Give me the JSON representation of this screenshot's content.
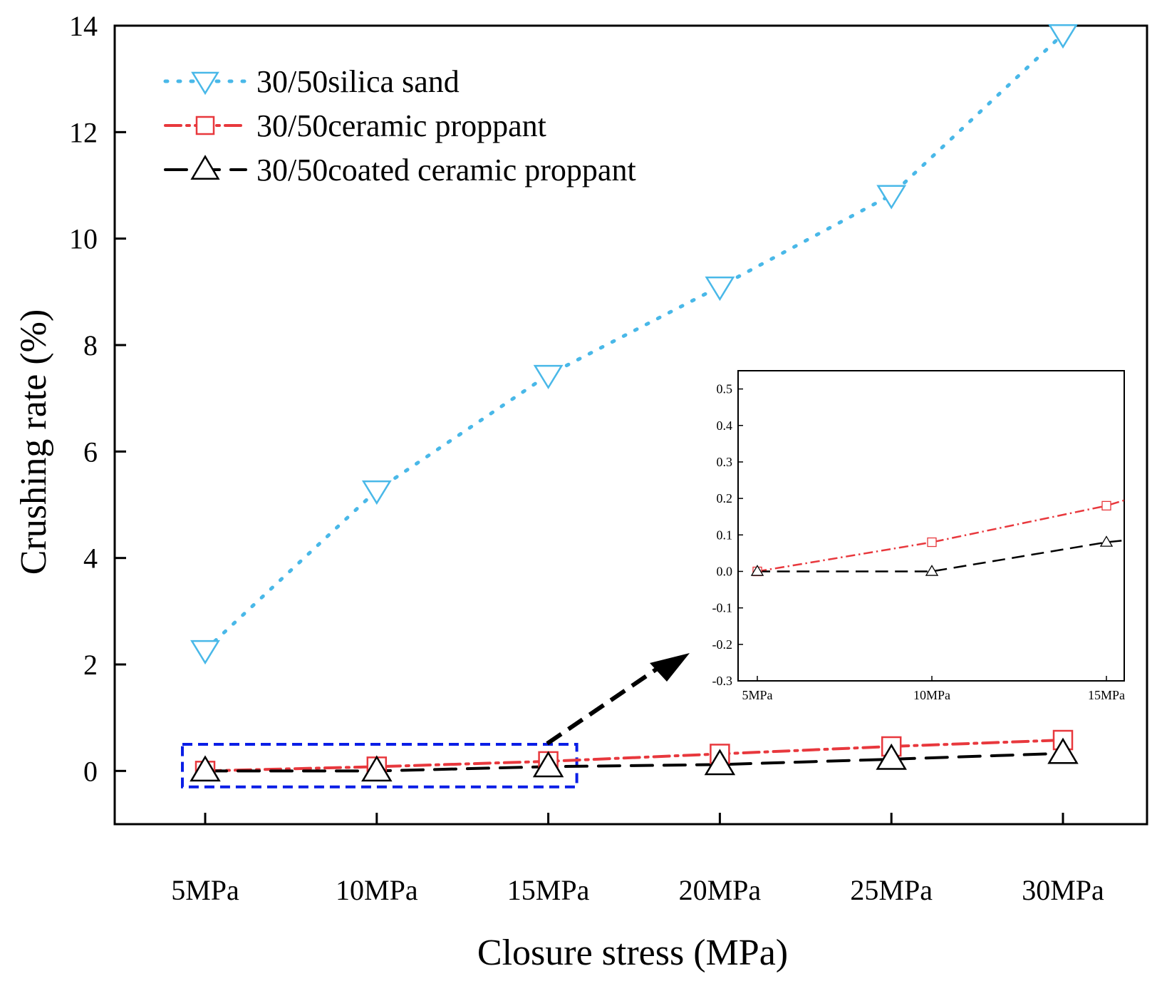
{
  "chart_data": [
    {
      "type": "line",
      "role": "main",
      "xlabel": "Closure stress (MPa)",
      "ylabel": "Crushing rate (%)",
      "categories": [
        "5MPa",
        "10MPa",
        "15MPa",
        "20MPa",
        "25MPa",
        "30MPa"
      ],
      "ylim": [
        -1,
        14
      ],
      "yticks": [
        0,
        2,
        4,
        6,
        8,
        10,
        12,
        14
      ],
      "legend_position": "top-left",
      "grid": false,
      "series": [
        {
          "name": "30/50silica sand",
          "color": "#49b8e8",
          "marker": "triangle-down",
          "line": "dotted",
          "values": [
            2.27,
            5.27,
            7.44,
            9.1,
            10.82,
            13.84
          ]
        },
        {
          "name": "30/50ceramic proppant",
          "color": "#e8383d",
          "marker": "square",
          "line": "dash-dot",
          "values": [
            0.0,
            0.08,
            0.18,
            0.32,
            0.46,
            0.58
          ]
        },
        {
          "name": "30/50coated ceramic proppant",
          "color": "#000000",
          "marker": "triangle-up",
          "line": "dashed",
          "values": [
            0.0,
            0.0,
            0.08,
            0.12,
            0.22,
            0.33
          ]
        }
      ],
      "zoom_box": {
        "x_from": "5MPa",
        "x_to": "15MPa",
        "y_from": -0.3,
        "y_to": 0.5,
        "color": "#0a1ee6"
      }
    },
    {
      "type": "line",
      "role": "inset",
      "categories": [
        "5MPa",
        "10MPa",
        "15MPa"
      ],
      "ylim": [
        -0.3,
        0.55
      ],
      "yticks": [
        -0.3,
        -0.2,
        -0.1,
        0.0,
        0.1,
        0.2,
        0.3,
        0.4,
        0.5
      ],
      "ytick_labels": [
        "-0.3",
        "-0.2",
        "-0.1",
        "0.0",
        "0.1",
        "0.2",
        "0.3",
        "0.4",
        "0.5"
      ],
      "series": [
        {
          "name": "30/50ceramic proppant",
          "color": "#e8383d",
          "marker": "square",
          "line": "dash-dot",
          "values": [
            0.0,
            0.08,
            0.18
          ],
          "extend_to": 0.195
        },
        {
          "name": "30/50coated ceramic proppant",
          "color": "#000000",
          "marker": "triangle-up",
          "line": "dashed",
          "values": [
            0.0,
            0.0,
            0.08
          ],
          "extend_to": 0.085
        }
      ]
    }
  ]
}
